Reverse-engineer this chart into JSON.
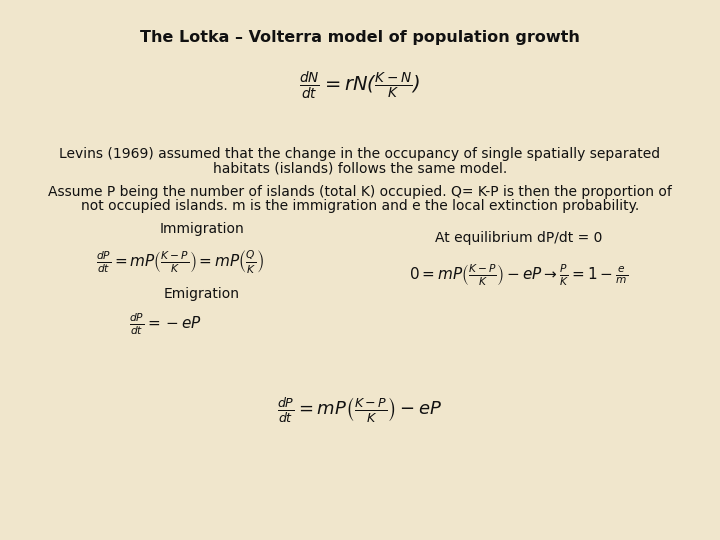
{
  "bg_color": "#f0e6cc",
  "title": "The Lotka – Volterra model of population growth",
  "title_fontsize": 11.5,
  "title_bold": true,
  "text_color": "#111111",
  "para1_line1": "Levins (1969) assumed that the change in the occupancy of single spatially separated",
  "para1_line2": "habitats (islands) follows the same model.",
  "para2_line1": "Assume P being the number of islands (total K) occupied. Q= K-P is then the proportion of",
  "para2_line2": "not occupied islands. m is the immigration and e the local extinction probability.",
  "label_immigration": "Immigration",
  "label_emigration": "Emigration",
  "label_equilibrium": "At equilibrium dP/dt = 0",
  "font_size_eq": 11,
  "font_size_text": 10,
  "font_size_label": 10
}
